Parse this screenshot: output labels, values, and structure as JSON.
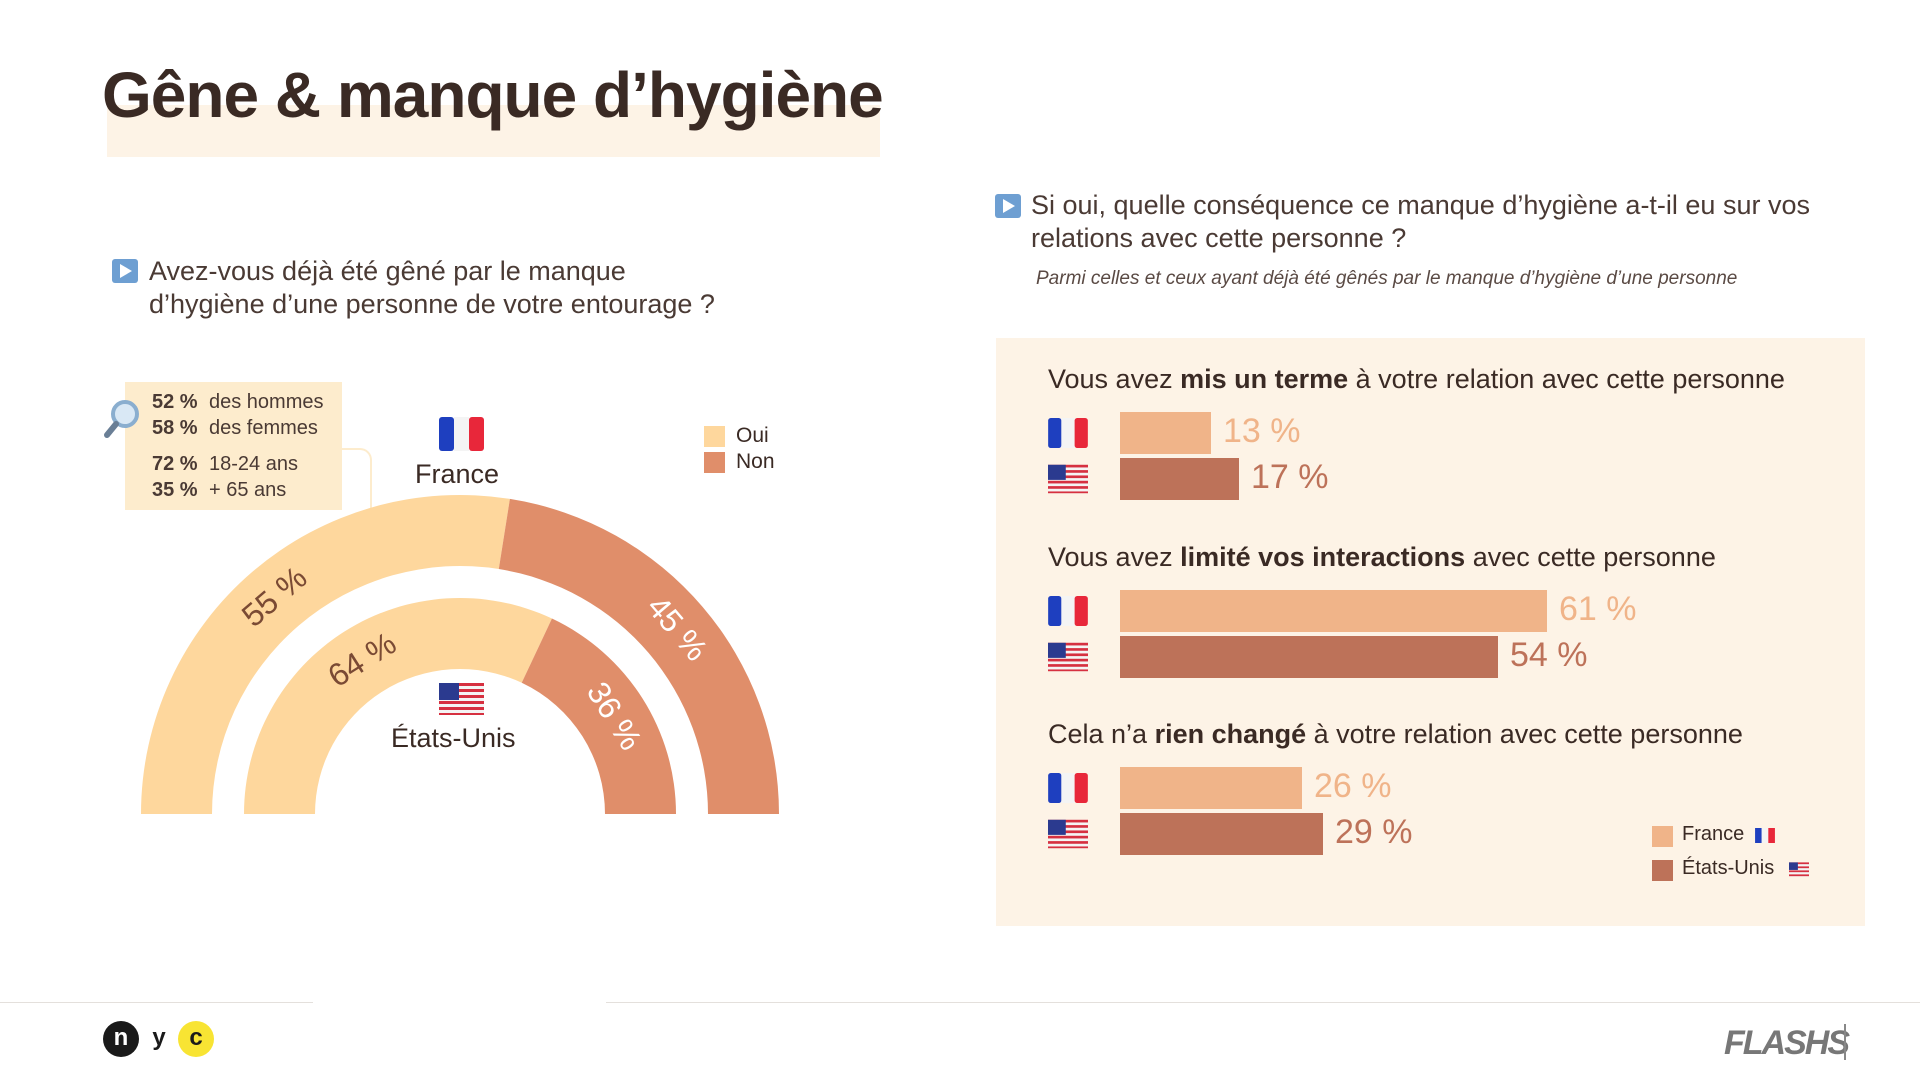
{
  "header": {
    "title": "Gêne & manque d’hygiène"
  },
  "left": {
    "question_line1": "Avez-vous déjà été gêné par le manque",
    "question_line2": "d’hygiène d’une personne de votre entourage ?",
    "callout": [
      {
        "value": "52 %",
        "label": "des hommes"
      },
      {
        "value": "58 %",
        "label": "des femmes"
      },
      {
        "value": "72 %",
        "label": "18-24 ans"
      },
      {
        "value": "35 %",
        "label": "+ 65 ans"
      }
    ],
    "legend": [
      {
        "label": "Oui",
        "color": "#fed79d"
      },
      {
        "label": "Non",
        "color": "#e08e6a"
      }
    ],
    "outer_label": "France",
    "inner_label": "États-Unis"
  },
  "right": {
    "question_line1": "Si oui, quelle conséquence ce manque d’hygiène a-t-il eu sur vos",
    "question_line2": "relations avec cette personne ?",
    "subnote": "Parmi celles et ceux ayant déjà été gênés par le manque d’hygiène d’une personne",
    "categories": [
      {
        "pre": "Vous avez ",
        "bold": "mis un terme",
        "post": " à votre relation avec cette personne"
      },
      {
        "pre": "Vous avez ",
        "bold": "limité vos interactions",
        "post": " avec cette personne"
      },
      {
        "pre": "Cela n’a ",
        "bold": "rien changé",
        "post": " à votre relation avec cette personne"
      }
    ],
    "legend": [
      {
        "label": "France",
        "color": "#f0b489"
      },
      {
        "label": "États-Unis",
        "color": "#bd7259"
      }
    ]
  },
  "chart_data": [
    {
      "type": "pie",
      "title": "Avez-vous déjà été gêné par le manque d’hygiène d’une personne de votre entourage ?",
      "series": [
        {
          "name": "France",
          "categories": [
            "Oui",
            "Non"
          ],
          "values": [
            55,
            45
          ],
          "labels": [
            "55 %",
            "45 %"
          ]
        },
        {
          "name": "États-Unis",
          "categories": [
            "Oui",
            "Non"
          ],
          "values": [
            64,
            36
          ],
          "labels": [
            "64 %",
            "36 %"
          ]
        }
      ],
      "colors": {
        "Oui": "#fed79d",
        "Non": "#e08e6a"
      },
      "legend": "top-right"
    },
    {
      "type": "bar",
      "title": "Si oui, quelle conséquence ce manque d’hygiène a-t-il eu sur vos relations avec cette personne ?",
      "categories": [
        "mis un terme",
        "limité vos interactions",
        "rien changé"
      ],
      "series": [
        {
          "name": "France",
          "values": [
            13,
            61,
            26
          ],
          "labels": [
            "13 %",
            "61 %",
            "26 %"
          ],
          "color": "#f0b489"
        },
        {
          "name": "États-Unis",
          "values": [
            17,
            54,
            29
          ],
          "labels": [
            "17 %",
            "54 %",
            "29 %"
          ],
          "color": "#bd7259"
        }
      ],
      "legend": "bottom-right"
    }
  ],
  "footer": {
    "logo_letters": [
      "n",
      "y",
      "c"
    ],
    "brand": "FLASHS"
  },
  "icons": [
    "play-icon",
    "magnifier-icon",
    "france-flag-icon",
    "usa-flag-icon"
  ]
}
